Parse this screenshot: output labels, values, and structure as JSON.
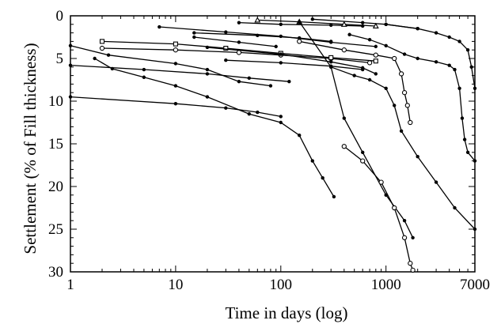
{
  "chart_data": {
    "type": "line",
    "xlabel": "Time in days (log)",
    "ylabel": "Settlement (% of Fill thickness)",
    "xscale": "log",
    "yaxis": "inverted",
    "xlim": [
      1,
      7000
    ],
    "ylim": [
      0,
      30
    ],
    "grid": false,
    "legend": "none",
    "x_ticks": [
      {
        "value": 1,
        "label": "1"
      },
      {
        "value": 10,
        "label": "10"
      },
      {
        "value": 100,
        "label": "100"
      },
      {
        "value": 1000,
        "label": "1000"
      },
      {
        "value": 7000,
        "label": "7000"
      }
    ],
    "y_ticks": [
      {
        "value": 0,
        "label": "0"
      },
      {
        "value": 5,
        "label": "5"
      },
      {
        "value": 10,
        "label": "10"
      },
      {
        "value": 15,
        "label": "15"
      },
      {
        "value": 20,
        "label": "20"
      },
      {
        "value": 25,
        "label": "25"
      },
      {
        "value": 30,
        "label": "30"
      }
    ],
    "series": [
      {
        "marker": "dot",
        "points": [
          [
            1,
            9.5
          ],
          [
            10,
            10.3
          ],
          [
            30,
            10.8
          ],
          [
            60,
            11.3
          ],
          [
            100,
            11.8
          ]
        ]
      },
      {
        "marker": "dot",
        "points": [
          [
            1,
            5.8
          ],
          [
            5,
            6.3
          ],
          [
            20,
            6.8
          ],
          [
            50,
            7.3
          ],
          [
            120,
            7.7
          ]
        ]
      },
      {
        "marker": "dot",
        "points": [
          [
            1.7,
            5.0
          ],
          [
            2.5,
            6.2
          ],
          [
            5,
            7.2
          ],
          [
            10,
            8.2
          ],
          [
            20,
            9.5
          ],
          [
            50,
            11.5
          ],
          [
            100,
            12.5
          ],
          [
            150,
            14
          ],
          [
            200,
            17
          ],
          [
            250,
            19
          ],
          [
            320,
            21.2
          ]
        ]
      },
      {
        "marker": "dot",
        "points": [
          [
            1,
            3.5
          ],
          [
            2.3,
            4.6
          ],
          [
            10,
            5.6
          ],
          [
            20,
            6.3
          ],
          [
            40,
            7.7
          ],
          [
            80,
            8.2
          ]
        ]
      },
      {
        "marker": "open-circle",
        "points": [
          [
            2,
            3.8
          ],
          [
            10,
            4.0
          ],
          [
            40,
            4.3
          ],
          [
            100,
            4.6
          ],
          [
            300,
            5.0
          ],
          [
            700,
            5.5
          ]
        ]
      },
      {
        "marker": "open-square",
        "points": [
          [
            2,
            3.0
          ],
          [
            10,
            3.3
          ],
          [
            30,
            3.8
          ],
          [
            100,
            4.4
          ],
          [
            300,
            4.9
          ],
          [
            800,
            5.3
          ]
        ]
      },
      {
        "marker": "dot",
        "points": [
          [
            7,
            1.3
          ],
          [
            30,
            1.9
          ],
          [
            100,
            2.4
          ],
          [
            300,
            3.1
          ],
          [
            800,
            3.6
          ]
        ]
      },
      {
        "marker": "dot",
        "points": [
          [
            15,
            2.5
          ],
          [
            40,
            3.1
          ],
          [
            90,
            3.6
          ]
        ]
      },
      {
        "marker": "dot",
        "points": [
          [
            20,
            3.7
          ],
          [
            100,
            4.5
          ],
          [
            300,
            5.4
          ],
          [
            600,
            6.1
          ],
          [
            800,
            6.8
          ]
        ]
      },
      {
        "marker": "dot",
        "points": [
          [
            30,
            5.2
          ],
          [
            100,
            5.5
          ],
          [
            300,
            5.9
          ],
          [
            600,
            6.3
          ]
        ]
      },
      {
        "marker": "dot",
        "points": [
          [
            15,
            2.0
          ],
          [
            60,
            2.3
          ],
          [
            150,
            2.6
          ],
          [
            300,
            3.0
          ]
        ]
      },
      {
        "marker": "dot",
        "points": [
          [
            40,
            0.8
          ],
          [
            100,
            1.0
          ],
          [
            300,
            1.1
          ],
          [
            600,
            1.2
          ]
        ]
      },
      {
        "marker": "open-triangle",
        "points": [
          [
            60,
            0.5
          ],
          [
            150,
            0.7
          ],
          [
            400,
            1.0
          ],
          [
            800,
            1.2
          ]
        ]
      },
      {
        "marker": "dot",
        "points": [
          [
            200,
            0.4
          ],
          [
            600,
            0.8
          ],
          [
            1000,
            1.0
          ],
          [
            2000,
            1.5
          ]
        ]
      },
      {
        "marker": "open-circle",
        "points": [
          [
            150,
            3.0
          ],
          [
            400,
            4.0
          ],
          [
            800,
            4.6
          ],
          [
            1200,
            5.0
          ],
          [
            1400,
            6.8
          ],
          [
            1500,
            9.0
          ],
          [
            1600,
            10.5
          ],
          [
            1700,
            12.5
          ]
        ]
      },
      {
        "marker": "dot",
        "points": [
          [
            300,
            6.0
          ],
          [
            500,
            7.0
          ],
          [
            700,
            7.5
          ],
          [
            1000,
            8.5
          ],
          [
            1200,
            10.5
          ],
          [
            1400,
            13.5
          ],
          [
            2000,
            16.5
          ],
          [
            3000,
            19.5
          ],
          [
            4500,
            22.5
          ],
          [
            7000,
            25
          ]
        ]
      },
      {
        "marker": "dot",
        "points": [
          [
            450,
            2.2
          ],
          [
            700,
            2.8
          ],
          [
            1000,
            3.5
          ],
          [
            1500,
            4.5
          ],
          [
            2000,
            5.0
          ],
          [
            3000,
            5.4
          ],
          [
            4000,
            5.8
          ],
          [
            4500,
            6.3
          ],
          [
            5000,
            8.5
          ],
          [
            5300,
            12.0
          ],
          [
            5600,
            14.5
          ],
          [
            6000,
            16.0
          ],
          [
            7000,
            17.0
          ]
        ]
      },
      {
        "marker": "dot",
        "points": [
          [
            1000,
            1.0
          ],
          [
            2000,
            1.5
          ],
          [
            3000,
            2.0
          ],
          [
            4000,
            2.5
          ],
          [
            5000,
            3.0
          ],
          [
            6000,
            4.0
          ],
          [
            6500,
            6.0
          ],
          [
            7000,
            8.5
          ]
        ]
      },
      {
        "marker": "dot",
        "points": [
          [
            150,
            0.7
          ],
          [
            300,
            6.0
          ],
          [
            400,
            12.0
          ],
          [
            600,
            16.0
          ],
          [
            1000,
            21.0
          ],
          [
            1500,
            24.0
          ],
          [
            1800,
            26.0
          ]
        ]
      },
      {
        "marker": "open-circle",
        "points": [
          [
            400,
            15.3
          ],
          [
            600,
            17.0
          ],
          [
            900,
            19.5
          ],
          [
            1200,
            22.5
          ],
          [
            1500,
            26.0
          ],
          [
            1700,
            29.0
          ],
          [
            1800,
            29.8
          ]
        ]
      }
    ]
  }
}
